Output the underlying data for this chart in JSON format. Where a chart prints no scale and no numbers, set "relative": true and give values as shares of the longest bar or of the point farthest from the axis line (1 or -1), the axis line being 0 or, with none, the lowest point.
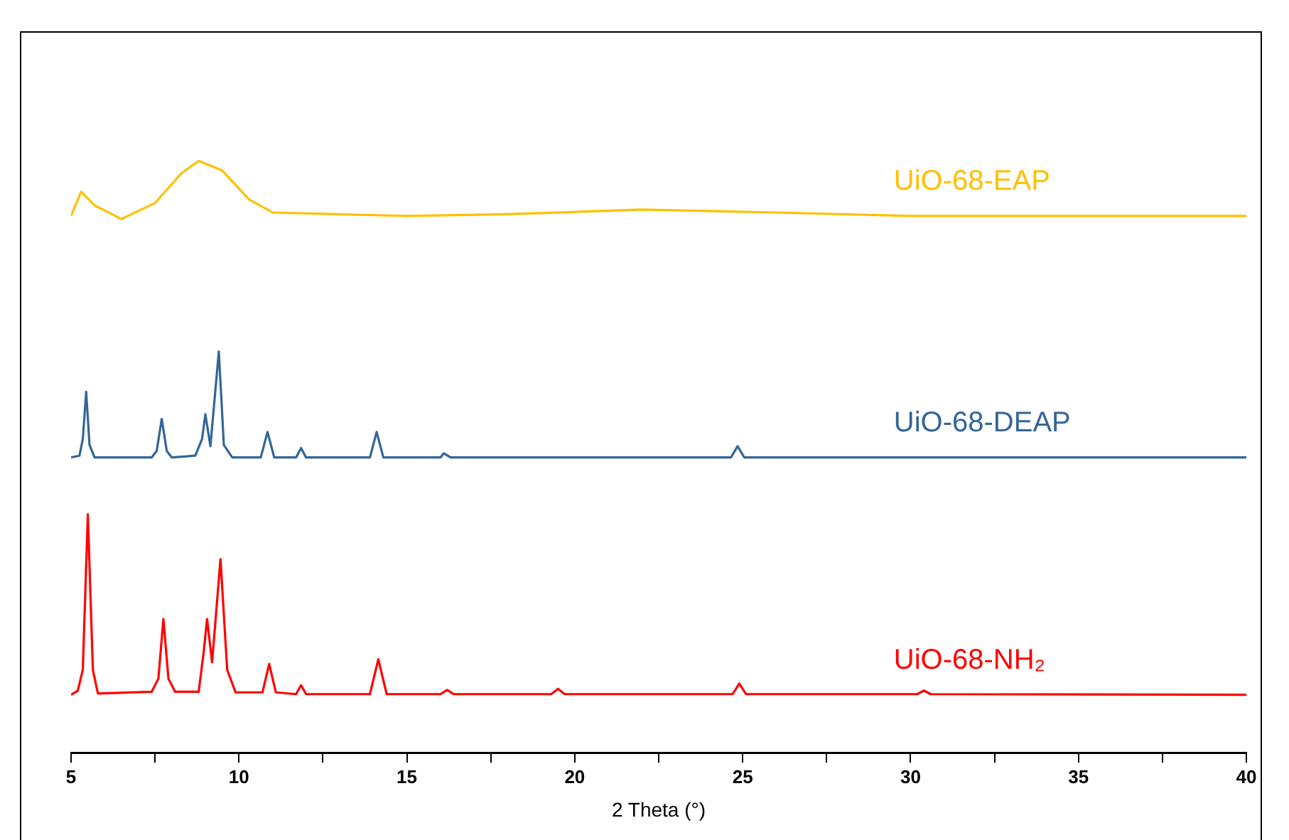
{
  "chart_data": {
    "type": "line",
    "relative": true,
    "xlabel": "2 Theta (°)",
    "xlim": [
      5,
      40
    ],
    "xticks": [
      5,
      {
        "value": 7.5,
        "label": null
      },
      10,
      {
        "value": 12.5,
        "label": null
      },
      15,
      {
        "value": 17.5,
        "label": null
      },
      20,
      {
        "value": 22.5,
        "label": null
      },
      25,
      {
        "value": 27.5,
        "label": null
      },
      30,
      {
        "value": 32.5,
        "label": null
      },
      35,
      {
        "value": 37.5,
        "label": null
      },
      40
    ],
    "grid": false,
    "legend": false,
    "marker": "none",
    "line_style": "solid",
    "series": [
      {
        "name": "UiO-68-EAP",
        "color": "#ffc000",
        "x": [
          5,
          5.3,
          5.7,
          6.5,
          7.5,
          8.3,
          8.8,
          9.5,
          10.3,
          11,
          15,
          18,
          22,
          26,
          30,
          35,
          40
        ],
        "values": [
          0.907,
          0.948,
          0.925,
          0.902,
          0.929,
          0.98,
          1.0,
          0.984,
          0.935,
          0.913,
          0.907,
          0.91,
          0.918,
          0.913,
          0.907,
          0.907,
          0.907
        ]
      },
      {
        "name": "UiO-68-DEAP",
        "color": "#336699",
        "x": [
          5,
          5.25,
          5.35,
          5.45,
          5.55,
          5.7,
          7.4,
          7.55,
          7.7,
          7.85,
          8.0,
          8.7,
          8.9,
          9.0,
          9.15,
          9.4,
          9.55,
          9.8,
          10.65,
          10.85,
          11.05,
          11.7,
          11.85,
          12,
          13.9,
          14.1,
          14.3,
          16.0,
          16.1,
          16.3,
          24.65,
          24.85,
          25.05,
          40
        ],
        "values": [
          0.499,
          0.502,
          0.53,
          0.61,
          0.52,
          0.499,
          0.499,
          0.51,
          0.564,
          0.51,
          0.499,
          0.502,
          0.53,
          0.572,
          0.518,
          0.678,
          0.52,
          0.499,
          0.499,
          0.542,
          0.499,
          0.499,
          0.515,
          0.499,
          0.499,
          0.542,
          0.499,
          0.499,
          0.506,
          0.499,
          0.499,
          0.518,
          0.499,
          0.499
        ]
      },
      {
        "name": "UiO-68-NH₂",
        "color": "#ff0000",
        "x": [
          5,
          5.2,
          5.35,
          5.5,
          5.65,
          5.8,
          7.4,
          7.6,
          7.75,
          7.9,
          8.1,
          8.8,
          8.95,
          9.05,
          9.2,
          9.45,
          9.65,
          9.9,
          10.7,
          10.9,
          11.1,
          11.7,
          11.85,
          12,
          13.9,
          14.15,
          14.4,
          16.0,
          16.2,
          16.4,
          19.3,
          19.5,
          19.7,
          24.7,
          24.9,
          25.1,
          30.2,
          30.4,
          30.6,
          40
        ],
        "values": [
          0.098,
          0.105,
          0.14,
          0.403,
          0.14,
          0.1,
          0.103,
          0.125,
          0.226,
          0.125,
          0.103,
          0.103,
          0.17,
          0.226,
          0.153,
          0.327,
          0.14,
          0.102,
          0.102,
          0.15,
          0.102,
          0.099,
          0.114,
          0.099,
          0.099,
          0.158,
          0.099,
          0.099,
          0.106,
          0.099,
          0.099,
          0.108,
          0.099,
          0.099,
          0.117,
          0.099,
          0.099,
          0.105,
          0.099,
          0.098
        ]
      }
    ]
  }
}
